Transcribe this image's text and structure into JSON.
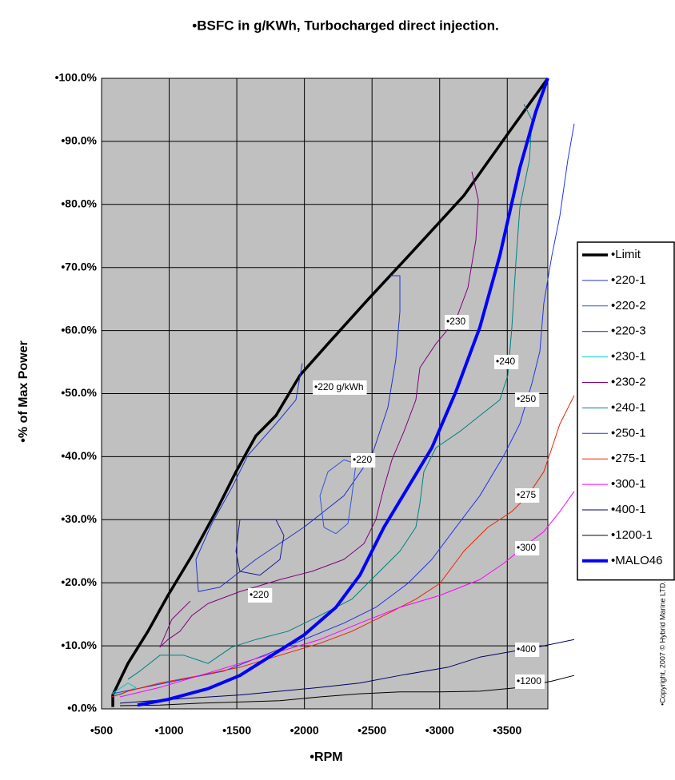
{
  "chart_data": {
    "type": "line",
    "title": "•BSFC in g/KWh, Turbocharged direct injection.",
    "x_label": "•RPM",
    "y_label": "•% of Max Power",
    "copyright": "•Copyright, 2007 © Hybrid Marine LTD.",
    "xlim": [
      500,
      3800
    ],
    "ylim": [
      0,
      100
    ],
    "xticks": [
      {
        "value": 500,
        "label": "•500"
      },
      {
        "value": 1000,
        "label": "•1000"
      },
      {
        "value": 1500,
        "label": "•1500"
      },
      {
        "value": 2000,
        "label": "•2000"
      },
      {
        "value": 2500,
        "label": "•2500"
      },
      {
        "value": 3000,
        "label": "•3000"
      },
      {
        "value": 3500,
        "label": "•3500"
      }
    ],
    "yticks": [
      {
        "value": 0,
        "label": "•0.0%"
      },
      {
        "value": 10,
        "label": "•10.0%"
      },
      {
        "value": 20,
        "label": "•20.0%"
      },
      {
        "value": 30,
        "label": "•30.0%"
      },
      {
        "value": 40,
        "label": "•40.0%"
      },
      {
        "value": 50,
        "label": "•50.0%"
      },
      {
        "value": 60,
        "label": "•60.0%"
      },
      {
        "value": 70,
        "label": "•70.0%"
      },
      {
        "value": 80,
        "label": "•80.0%"
      },
      {
        "value": 90,
        "label": "•90.0%"
      },
      {
        "value": 100,
        "label": "•100.0%"
      }
    ],
    "grid": true,
    "legend": "right",
    "series": [
      {
        "name": "•Limit",
        "color": "#000000",
        "line_width": 3.5,
        "x": [
          583,
          583,
          695,
          843,
          991,
          1168,
          1346,
          1494,
          1641,
          1789,
          1967,
          2174,
          2469,
          2824,
          3179,
          3534,
          3800
        ],
        "values": [
          0.3,
          2.2,
          7.2,
          12.3,
          18,
          24.3,
          31.3,
          37.6,
          43.3,
          46.5,
          52.9,
          57.9,
          64.9,
          73.1,
          81.4,
          92.1,
          100
        ]
      },
      {
        "name": "•220-1",
        "color": "#2233cc",
        "line_width": 1,
        "x": [
          1984,
          1937,
          1789,
          1582,
          1464,
          1316,
          1198,
          1216,
          1375,
          1641,
          1996,
          2292,
          2499,
          2617,
          2676,
          2706,
          2706,
          2635
        ],
        "values": [
          54.8,
          49.0,
          45.2,
          40.2,
          35.1,
          29.4,
          23.7,
          18.6,
          19.3,
          23.7,
          28.8,
          33.8,
          40.2,
          47.8,
          55.4,
          63.0,
          68.7,
          68.7
        ]
      },
      {
        "name": "•220-2",
        "color": "#3355dd",
        "line_width": 1,
        "x": [
          2144,
          2115,
          2174,
          2292,
          2381,
          2351,
          2322,
          2233,
          2144
        ],
        "values": [
          28.8,
          33.8,
          37.6,
          39.5,
          38.9,
          33.8,
          29.4,
          27.8,
          28.8
        ]
      },
      {
        "name": "•220-3",
        "color": "#1a1a99",
        "line_width": 1,
        "x": [
          1523,
          1641,
          1789,
          1848,
          1819,
          1671,
          1523,
          1494,
          1523
        ],
        "values": [
          30.0,
          30.0,
          30.0,
          27.5,
          23.7,
          21.2,
          21.8,
          25.0,
          30.0
        ]
      },
      {
        "name": "•230-1",
        "color": "#00cccc",
        "line_width": 1,
        "x": [
          577,
          695,
          754,
          636,
          577
        ],
        "values": [
          2.4,
          4.1,
          3.4,
          2.2,
          2.4
        ]
      },
      {
        "name": "•230-2",
        "color": "#800080",
        "line_width": 1,
        "x": [
          3238,
          3286,
          3268,
          3209,
          3120,
          2972,
          2854,
          2824,
          2736,
          2647,
          2588,
          2528,
          2440,
          2292,
          2055,
          1819,
          1523,
          1287,
          1168,
          1080,
          991,
          932,
          1020,
          1156
        ],
        "values": [
          85.2,
          80.7,
          74.4,
          66.8,
          61.7,
          57.9,
          54.1,
          49.0,
          44.0,
          39.5,
          35.1,
          30.0,
          26.2,
          23.7,
          21.8,
          20.5,
          18.6,
          16.7,
          14.8,
          12.3,
          11.0,
          9.8,
          14.2,
          17.1
        ]
      },
      {
        "name": "•240-1",
        "color": "#008080",
        "line_width": 1,
        "x": [
          3623,
          3682,
          3664,
          3593,
          3563,
          3534,
          3504,
          3445,
          3297,
          3150,
          2972,
          2883,
          2854,
          2824,
          2706,
          2528,
          2351,
          2115,
          1878,
          1641,
          1464,
          1287,
          1109,
          932,
          784,
          695
        ],
        "values": [
          95.9,
          93.4,
          87.1,
          79.5,
          70.6,
          60.5,
          52.9,
          49.0,
          46.5,
          44.0,
          41.4,
          37.6,
          32.6,
          28.8,
          25.0,
          21.2,
          17.4,
          14.8,
          12.3,
          11.0,
          9.8,
          7.2,
          8.5,
          8.5,
          6.0,
          4.7
        ]
      },
      {
        "name": "•250-1",
        "color": "#2233ee",
        "line_width": 1,
        "x": [
          3995,
          3948,
          3889,
          3830,
          3770,
          3741,
          3682,
          3593,
          3475,
          3297,
          3120,
          2942,
          2765,
          2528,
          2292,
          1996,
          1701,
          1405,
          1109,
          813,
          577
        ],
        "values": [
          92.8,
          87.1,
          78.2,
          71.9,
          64.3,
          56.7,
          51.6,
          45.2,
          40.2,
          33.8,
          28.8,
          23.7,
          19.9,
          16.1,
          13.6,
          11.0,
          8.5,
          6.0,
          4.7,
          3.4,
          2.4
        ]
      },
      {
        "name": "•275-1",
        "color": "#ee2200",
        "line_width": 1,
        "x": [
          3995,
          3889,
          3830,
          3770,
          3652,
          3534,
          3357,
          3179,
          3002,
          2824,
          2588,
          2351,
          2115,
          1819,
          1523,
          1227,
          932,
          695,
          577
        ],
        "values": [
          49.7,
          45.2,
          41.4,
          37.6,
          33.8,
          31.3,
          28.8,
          25.0,
          19.9,
          17.4,
          14.8,
          12.3,
          10.4,
          8.5,
          6.6,
          5.3,
          4.1,
          2.8,
          1.9
        ]
      },
      {
        "name": "•300-1",
        "color": "#ff00ff",
        "line_width": 1,
        "x": [
          3995,
          3889,
          3770,
          3652,
          3475,
          3297,
          3002,
          2706,
          2410,
          2115,
          1819,
          1523,
          1227,
          932,
          636
        ],
        "values": [
          34.5,
          31.3,
          28.1,
          26.2,
          23.1,
          20.5,
          18.0,
          16.1,
          13.6,
          11.0,
          9.1,
          7.2,
          5.3,
          3.4,
          1.9
        ]
      },
      {
        "name": "•400-1",
        "color": "#000066",
        "line_width": 1,
        "x": [
          3995,
          3770,
          3534,
          3297,
          3061,
          2706,
          2410,
          2115,
          1819,
          1523,
          1227,
          932,
          636
        ],
        "values": [
          11.0,
          10.0,
          9.1,
          8.2,
          6.6,
          5.3,
          4.1,
          3.4,
          2.8,
          2.2,
          1.8,
          1.4,
          0.9
        ]
      },
      {
        "name": "•1200-1",
        "color": "#000000",
        "line_width": 1,
        "x": [
          3995,
          3830,
          3593,
          3297,
          3002,
          2706,
          2410,
          2115,
          1819,
          1523,
          1227,
          932,
          636
        ],
        "values": [
          5.3,
          4.4,
          3.4,
          2.8,
          2.7,
          2.7,
          2.4,
          1.9,
          1.3,
          1.1,
          0.9,
          0.6,
          0.5
        ]
      },
      {
        "name": "•MALO46",
        "color": "#0000ff",
        "line_width": 4,
        "x": [
          766,
          991,
          1287,
          1523,
          1760,
          1996,
          2233,
          2410,
          2588,
          2765,
          2942,
          3120,
          3297,
          3445,
          3593,
          3711,
          3800
        ],
        "values": [
          0.6,
          1.5,
          3.2,
          5.3,
          8.5,
          11.7,
          16.1,
          21.2,
          28.8,
          35.1,
          41.4,
          50.3,
          60.5,
          71.9,
          85.8,
          94.7,
          100
        ]
      }
    ],
    "annotations": [
      "•220 g/kWh",
      "•220",
      "•220",
      "•230",
      "•240",
      "•250",
      "•275",
      "•300",
      "•400",
      "•1200"
    ]
  }
}
